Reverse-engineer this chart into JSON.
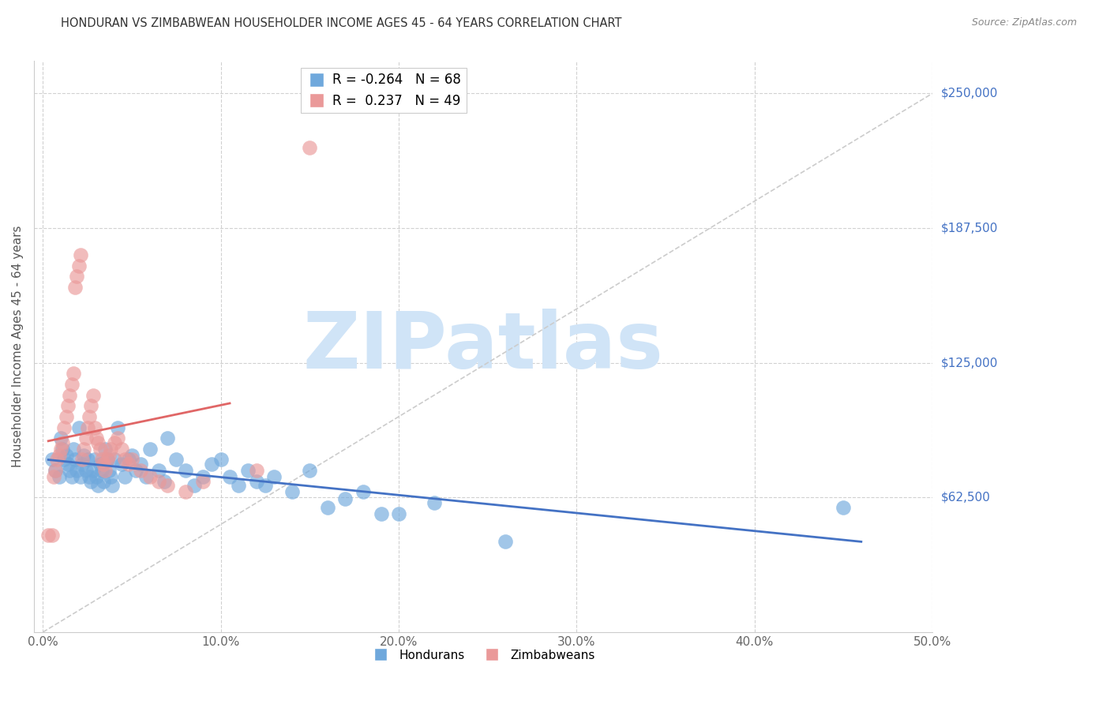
{
  "title": "HONDURAN VS ZIMBABWEAN HOUSEHOLDER INCOME AGES 45 - 64 YEARS CORRELATION CHART",
  "source": "Source: ZipAtlas.com",
  "xlabel_ticks": [
    "0.0%",
    "10.0%",
    "20.0%",
    "30.0%",
    "40.0%",
    "50.0%"
  ],
  "xlabel_vals": [
    0.0,
    0.1,
    0.2,
    0.3,
    0.4,
    0.5
  ],
  "ylabel": "Householder Income Ages 45 - 64 years",
  "ylabel_ticks": [
    "$62,500",
    "$125,000",
    "$187,500",
    "$250,000"
  ],
  "ylabel_vals": [
    62500,
    125000,
    187500,
    250000
  ],
  "xlim": [
    -0.005,
    0.5
  ],
  "ylim": [
    0,
    265000
  ],
  "legend_r_n": [
    [
      "R = -0.264",
      "N = 68"
    ],
    [
      "R =  0.237",
      "N = 49"
    ]
  ],
  "blue_color": "#6fa8dc",
  "pink_color": "#ea9999",
  "trendline_blue": "#4472c4",
  "trendline_pink": "#e06666",
  "diagonal_color": "#cccccc",
  "watermark": "ZIPatlas",
  "watermark_color": "#d0e4f7",
  "right_label_color": "#4472c4",
  "hondurans_x": [
    0.005,
    0.007,
    0.009,
    0.01,
    0.011,
    0.012,
    0.013,
    0.014,
    0.015,
    0.016,
    0.017,
    0.018,
    0.019,
    0.02,
    0.021,
    0.022,
    0.023,
    0.024,
    0.025,
    0.026,
    0.027,
    0.028,
    0.029,
    0.03,
    0.031,
    0.032,
    0.033,
    0.034,
    0.035,
    0.036,
    0.037,
    0.038,
    0.039,
    0.04,
    0.042,
    0.044,
    0.046,
    0.048,
    0.05,
    0.052,
    0.055,
    0.058,
    0.06,
    0.065,
    0.068,
    0.07,
    0.075,
    0.08,
    0.085,
    0.09,
    0.095,
    0.1,
    0.105,
    0.11,
    0.115,
    0.12,
    0.125,
    0.13,
    0.14,
    0.15,
    0.16,
    0.17,
    0.18,
    0.19,
    0.2,
    0.22,
    0.26,
    0.45
  ],
  "hondurans_y": [
    80000,
    75000,
    72000,
    90000,
    85000,
    80000,
    82000,
    78000,
    75000,
    72000,
    85000,
    80000,
    75000,
    95000,
    72000,
    78000,
    82000,
    75000,
    80000,
    72000,
    70000,
    75000,
    80000,
    72000,
    68000,
    78000,
    75000,
    70000,
    85000,
    80000,
    75000,
    72000,
    68000,
    80000,
    95000,
    78000,
    72000,
    80000,
    82000,
    75000,
    78000,
    72000,
    85000,
    75000,
    70000,
    90000,
    80000,
    75000,
    68000,
    72000,
    78000,
    80000,
    72000,
    68000,
    75000,
    70000,
    68000,
    72000,
    65000,
    75000,
    58000,
    62000,
    65000,
    55000,
    55000,
    60000,
    42000,
    58000
  ],
  "zimbabweans_x": [
    0.003,
    0.005,
    0.006,
    0.007,
    0.008,
    0.009,
    0.01,
    0.011,
    0.012,
    0.013,
    0.014,
    0.015,
    0.016,
    0.017,
    0.018,
    0.019,
    0.02,
    0.021,
    0.022,
    0.023,
    0.024,
    0.025,
    0.026,
    0.027,
    0.028,
    0.029,
    0.03,
    0.031,
    0.032,
    0.033,
    0.034,
    0.035,
    0.036,
    0.037,
    0.038,
    0.04,
    0.042,
    0.044,
    0.046,
    0.048,
    0.05,
    0.055,
    0.06,
    0.065,
    0.07,
    0.08,
    0.09,
    0.12,
    0.15
  ],
  "zimbabweans_y": [
    45000,
    45000,
    72000,
    75000,
    80000,
    82000,
    85000,
    88000,
    95000,
    100000,
    105000,
    110000,
    115000,
    120000,
    160000,
    165000,
    170000,
    175000,
    80000,
    85000,
    90000,
    95000,
    100000,
    105000,
    110000,
    95000,
    90000,
    88000,
    85000,
    80000,
    78000,
    75000,
    80000,
    82000,
    85000,
    88000,
    90000,
    85000,
    80000,
    78000,
    80000,
    75000,
    72000,
    70000,
    68000,
    65000,
    70000,
    75000,
    225000
  ]
}
